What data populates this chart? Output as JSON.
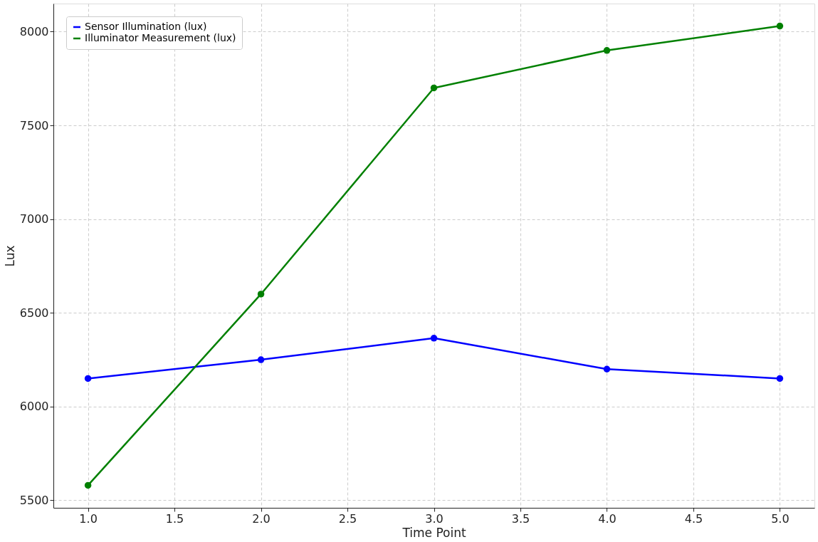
{
  "chart_data": {
    "type": "line",
    "xlabel": "Time Point",
    "ylabel": "Lux",
    "x": [
      1.0,
      2.0,
      3.0,
      4.0,
      5.0
    ],
    "series": [
      {
        "name": "Sensor Illumination (lux)",
        "color": "#0000ff",
        "values": [
          6150,
          6250,
          6365,
          6200,
          6150
        ]
      },
      {
        "name": "Illuminator Measurement (lux)",
        "color": "#008000",
        "values": [
          5580,
          6600,
          7700,
          7900,
          8030
        ]
      }
    ],
    "xlim": [
      0.8,
      5.2
    ],
    "xticks": [
      {
        "value": 1.0,
        "label": "1.0"
      },
      {
        "value": 1.5,
        "label": "1.5"
      },
      {
        "value": 2.0,
        "label": "2.0"
      },
      {
        "value": 2.5,
        "label": "2.5"
      },
      {
        "value": 3.0,
        "label": "3.0"
      },
      {
        "value": 3.5,
        "label": "3.5"
      },
      {
        "value": 4.0,
        "label": "4.0"
      },
      {
        "value": 4.5,
        "label": "4.5"
      },
      {
        "value": 5.0,
        "label": "5.0"
      }
    ],
    "ylim": [
      5460,
      8150
    ],
    "yticks": [
      5500,
      6000,
      6500,
      7000,
      7500,
      8000
    ],
    "grid": true,
    "legend": "top left",
    "marker": "circle",
    "line_style": "solid"
  }
}
